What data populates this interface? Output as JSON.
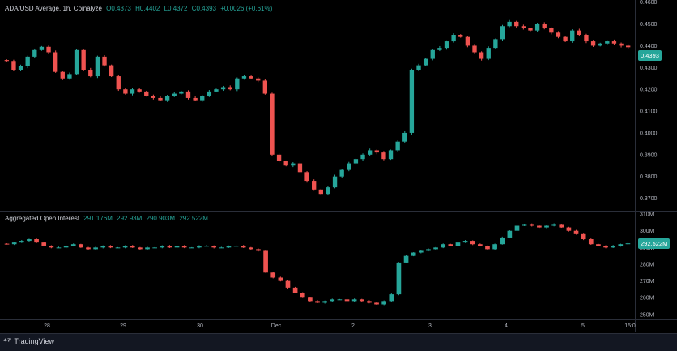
{
  "price_legend": {
    "title": "ADA/USD Average, 1h, Coinalyze",
    "open": "O0.4373",
    "high": "H0.4402",
    "low": "L0.4372",
    "close": "C0.4393",
    "change": "+0.0026 (+0.61%)"
  },
  "oi_legend": {
    "title": "Aggregated Open Interest",
    "v1": "291.176M",
    "v2": "292.93M",
    "v3": "290.903M",
    "v4": "292.522M"
  },
  "price_last": "0.4393",
  "oi_last": "292.522M",
  "footer": {
    "brand": "TradingView"
  },
  "colors": {
    "up": "#26a69a",
    "down": "#ef5350"
  },
  "chart_data": [
    {
      "type": "candlestick",
      "title": "ADA/USD Average, 1h, Coinalyze",
      "y_ticks": [
        "0.4600",
        "0.4500",
        "0.4400",
        "0.4300",
        "0.4200",
        "0.4100",
        "0.4000",
        "0.3900",
        "0.3800",
        "0.3700"
      ],
      "ylim": [
        0.365,
        0.461
      ],
      "x_ticks": [
        "28",
        "29",
        "30",
        "Dec",
        "2",
        "3",
        "4",
        "5",
        "15:0"
      ],
      "series": [
        {
          "values": [
            0.433,
            0.429,
            0.4305,
            0.435,
            0.438,
            0.4395,
            0.437,
            0.428,
            0.425,
            0.427,
            0.438,
            0.429,
            0.426,
            0.435,
            0.431,
            0.426,
            0.42,
            0.418,
            0.42,
            0.419,
            0.417,
            0.416,
            0.415,
            0.417,
            0.418,
            0.419,
            0.416,
            0.415,
            0.417,
            0.419,
            0.42,
            0.421,
            0.42,
            0.425,
            0.426,
            0.425,
            0.424,
            0.418,
            0.39,
            0.387,
            0.385,
            0.386,
            0.382,
            0.378,
            0.374,
            0.372,
            0.375,
            0.38,
            0.383,
            0.386,
            0.388,
            0.39,
            0.392,
            0.391,
            0.388,
            0.392,
            0.396,
            0.4,
            0.429,
            0.431,
            0.434,
            0.438,
            0.439,
            0.442,
            0.445,
            0.444,
            0.44,
            0.437,
            0.434,
            0.439,
            0.443,
            0.449,
            0.451,
            0.449,
            0.448,
            0.447,
            0.45,
            0.448,
            0.446,
            0.444,
            0.442,
            0.447,
            0.445,
            0.442,
            0.44,
            0.441,
            0.442,
            0.441,
            0.44,
            0.4393
          ]
        }
      ]
    },
    {
      "type": "candlestick",
      "title": "Aggregated Open Interest",
      "y_ticks": [
        "310M",
        "300M",
        "290M",
        "280M",
        "270M",
        "260M",
        "250M"
      ],
      "ylim": [
        248,
        311
      ],
      "x_ticks": [
        "28",
        "29",
        "30",
        "Dec",
        "2",
        "3",
        "4",
        "5",
        "15:0"
      ],
      "series": [
        {
          "values": [
            292,
            293,
            294,
            295,
            293,
            291,
            290,
            290,
            291,
            292,
            290,
            289,
            290,
            291,
            290,
            290,
            291,
            290,
            289,
            290,
            290,
            291,
            290,
            291,
            290,
            290,
            291,
            291,
            290,
            290,
            291,
            291,
            290,
            289,
            288,
            275,
            272,
            270,
            266,
            263,
            260,
            258,
            257,
            258,
            259,
            259,
            258,
            259,
            258,
            257,
            256,
            258,
            262,
            281,
            285,
            287,
            288,
            289,
            290,
            292,
            291,
            293,
            294,
            292,
            291,
            289,
            292,
            296,
            300,
            303,
            304,
            303,
            302,
            303,
            304,
            302,
            300,
            298,
            295,
            292,
            291,
            290,
            291,
            292,
            292.5
          ]
        }
      ]
    }
  ]
}
